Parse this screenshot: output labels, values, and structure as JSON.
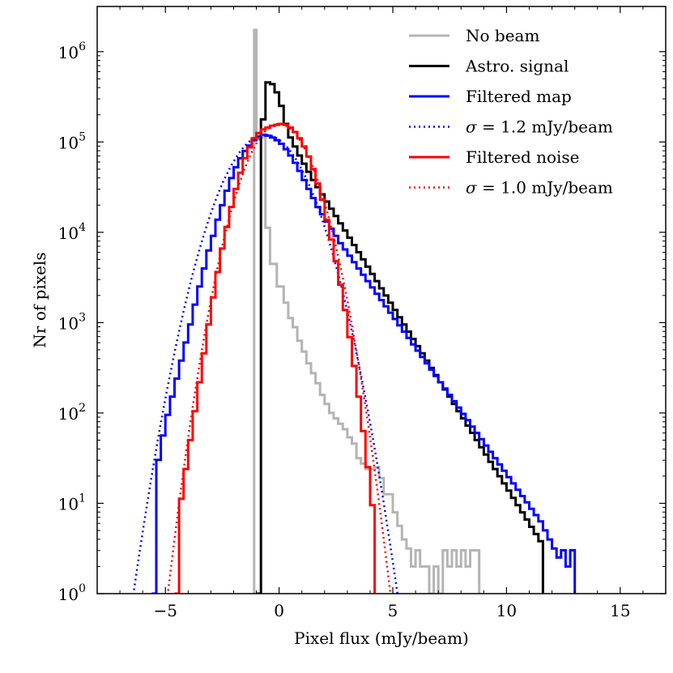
{
  "chart_data": {
    "type": "line",
    "title": "",
    "xlabel": "Pixel flux (mJy/beam)",
    "ylabel": "Nr of pixels",
    "xlim": [
      -8,
      17
    ],
    "ylim_log10": [
      0,
      6.5
    ],
    "yscale": "log",
    "xticks": [
      -5,
      0,
      5,
      10,
      15
    ],
    "xtick_labels": [
      "−5",
      "0",
      "5",
      "10",
      "15"
    ],
    "yticks_log10": [
      0,
      1,
      2,
      3,
      4,
      5,
      6
    ],
    "ytick_labels": [
      {
        "base": "10",
        "exp": "0"
      },
      {
        "base": "10",
        "exp": "1"
      },
      {
        "base": "10",
        "exp": "2"
      },
      {
        "base": "10",
        "exp": "3"
      },
      {
        "base": "10",
        "exp": "4"
      },
      {
        "base": "10",
        "exp": "5"
      },
      {
        "base": "10",
        "exp": "6"
      }
    ],
    "legend_position": "top-right",
    "series": [
      {
        "name": "No beam",
        "color": "#b4b4b4",
        "style": "step",
        "dashed": false,
        "points": [
          [
            -1.1,
            6.24
          ],
          [
            -1.0,
            5.05
          ],
          [
            -0.6,
            4.05
          ],
          [
            -0.4,
            3.65
          ],
          [
            -0.1,
            3.4
          ],
          [
            0.2,
            3.22
          ],
          [
            0.4,
            3.05
          ],
          [
            0.6,
            2.95
          ],
          [
            0.8,
            2.8
          ],
          [
            1.0,
            2.68
          ],
          [
            1.2,
            2.55
          ],
          [
            1.4,
            2.44
          ],
          [
            1.6,
            2.33
          ],
          [
            1.8,
            2.2
          ],
          [
            2.0,
            2.1
          ],
          [
            2.2,
            2.0
          ],
          [
            2.4,
            1.94
          ],
          [
            2.6,
            1.88
          ],
          [
            2.8,
            1.82
          ],
          [
            3.0,
            1.73
          ],
          [
            3.2,
            1.66
          ],
          [
            3.4,
            1.5
          ],
          [
            3.6,
            1.44
          ],
          [
            3.8,
            1.38
          ],
          [
            4.0,
            1.38
          ],
          [
            4.2,
            1.4
          ],
          [
            4.4,
            1.28
          ],
          [
            4.6,
            1.1
          ],
          [
            4.8,
            1.1
          ],
          [
            5.0,
            0.9
          ],
          [
            5.2,
            0.75
          ],
          [
            5.4,
            0.6
          ],
          [
            5.6,
            0.5
          ],
          [
            5.8,
            0.3
          ],
          [
            6.0,
            0.48
          ],
          [
            6.2,
            0.3
          ],
          [
            6.4,
            0.3
          ],
          [
            6.6,
            0.0
          ],
          [
            6.8,
            0.3
          ],
          [
            7.0,
            0.0
          ],
          [
            7.2,
            0.48
          ],
          [
            7.4,
            0.3
          ],
          [
            7.6,
            0.48
          ],
          [
            7.8,
            0.3
          ],
          [
            8.0,
            0.48
          ],
          [
            8.2,
            0.3
          ],
          [
            8.4,
            0.48
          ],
          [
            8.6,
            0.48
          ],
          [
            8.8,
            0.0
          ]
        ]
      },
      {
        "name": "Astro. signal",
        "color": "#000000",
        "style": "step",
        "dashed": false,
        "points": [
          [
            -1.0,
            0.0
          ],
          [
            -0.8,
            5.25
          ],
          [
            -0.6,
            5.66
          ],
          [
            -0.4,
            5.64
          ],
          [
            -0.2,
            5.55
          ],
          [
            0.0,
            5.4
          ],
          [
            0.2,
            5.2
          ],
          [
            0.4,
            5.05
          ],
          [
            0.6,
            4.95
          ],
          [
            0.8,
            4.85
          ],
          [
            1.0,
            4.76
          ],
          [
            1.2,
            4.67
          ],
          [
            1.4,
            4.58
          ],
          [
            1.6,
            4.5
          ],
          [
            1.8,
            4.42
          ],
          [
            2.0,
            4.34
          ],
          [
            2.2,
            4.26
          ],
          [
            2.4,
            4.18
          ],
          [
            2.6,
            4.1
          ],
          [
            2.8,
            4.02
          ],
          [
            3.0,
            3.94
          ],
          [
            3.2,
            3.86
          ],
          [
            3.4,
            3.78
          ],
          [
            3.6,
            3.7
          ],
          [
            3.8,
            3.62
          ],
          [
            4.0,
            3.54
          ],
          [
            4.2,
            3.46
          ],
          [
            4.4,
            3.38
          ],
          [
            4.6,
            3.3
          ],
          [
            4.8,
            3.22
          ],
          [
            5.0,
            3.14
          ],
          [
            5.2,
            3.06
          ],
          [
            5.4,
            2.98
          ],
          [
            5.6,
            2.9
          ],
          [
            5.8,
            2.82
          ],
          [
            6.0,
            2.74
          ],
          [
            6.2,
            2.66
          ],
          [
            6.4,
            2.58
          ],
          [
            6.6,
            2.5
          ],
          [
            6.8,
            2.42
          ],
          [
            7.0,
            2.34
          ],
          [
            7.2,
            2.26
          ],
          [
            7.4,
            2.18
          ],
          [
            7.6,
            2.1
          ],
          [
            7.8,
            2.02
          ],
          [
            8.0,
            1.94
          ],
          [
            8.2,
            1.86
          ],
          [
            8.4,
            1.78
          ],
          [
            8.6,
            1.7
          ],
          [
            8.8,
            1.62
          ],
          [
            9.0,
            1.54
          ],
          [
            9.2,
            1.46
          ],
          [
            9.4,
            1.38
          ],
          [
            9.6,
            1.3
          ],
          [
            9.8,
            1.22
          ],
          [
            10.0,
            1.14
          ],
          [
            10.2,
            1.06
          ],
          [
            10.4,
            0.98
          ],
          [
            10.6,
            0.9
          ],
          [
            10.8,
            0.82
          ],
          [
            11.0,
            0.74
          ],
          [
            11.2,
            0.66
          ],
          [
            11.4,
            0.58
          ],
          [
            11.6,
            0.0
          ]
        ]
      },
      {
        "name": "Filtered map",
        "color": "#0000ff",
        "style": "step",
        "dashed": false,
        "points": [
          [
            -5.6,
            0.0
          ],
          [
            -5.4,
            1.48
          ],
          [
            -5.2,
            1.75
          ],
          [
            -5.0,
            1.98
          ],
          [
            -4.8,
            2.18
          ],
          [
            -4.6,
            2.38
          ],
          [
            -4.4,
            2.58
          ],
          [
            -4.2,
            2.78
          ],
          [
            -4.0,
            2.98
          ],
          [
            -3.8,
            3.2
          ],
          [
            -3.6,
            3.4
          ],
          [
            -3.4,
            3.6
          ],
          [
            -3.2,
            3.8
          ],
          [
            -3.0,
            3.96
          ],
          [
            -2.8,
            4.14
          ],
          [
            -2.6,
            4.3
          ],
          [
            -2.4,
            4.46
          ],
          [
            -2.2,
            4.6
          ],
          [
            -2.0,
            4.72
          ],
          [
            -1.8,
            4.82
          ],
          [
            -1.6,
            4.9
          ],
          [
            -1.4,
            4.96
          ],
          [
            -1.2,
            5.02
          ],
          [
            -1.0,
            5.06
          ],
          [
            -0.8,
            5.08
          ],
          [
            -0.6,
            5.07
          ],
          [
            -0.4,
            5.05
          ],
          [
            -0.2,
            5.02
          ],
          [
            0.0,
            4.98
          ],
          [
            0.2,
            4.92
          ],
          [
            0.4,
            4.85
          ],
          [
            0.6,
            4.77
          ],
          [
            0.8,
            4.68
          ],
          [
            1.0,
            4.58
          ],
          [
            1.2,
            4.48
          ],
          [
            1.4,
            4.38
          ],
          [
            1.6,
            4.28
          ],
          [
            1.8,
            4.2
          ],
          [
            2.0,
            4.12
          ],
          [
            2.2,
            4.04
          ],
          [
            2.4,
            3.96
          ],
          [
            2.6,
            3.88
          ],
          [
            2.8,
            3.81
          ],
          [
            3.0,
            3.74
          ],
          [
            3.2,
            3.67
          ],
          [
            3.4,
            3.6
          ],
          [
            3.6,
            3.53
          ],
          [
            3.8,
            3.46
          ],
          [
            4.0,
            3.39
          ],
          [
            4.2,
            3.32
          ],
          [
            4.4,
            3.25
          ],
          [
            4.6,
            3.18
          ],
          [
            4.8,
            3.11
          ],
          [
            5.0,
            3.04
          ],
          [
            5.2,
            2.97
          ],
          [
            5.4,
            2.9
          ],
          [
            5.6,
            2.83
          ],
          [
            5.8,
            2.76
          ],
          [
            6.0,
            2.69
          ],
          [
            6.2,
            2.62
          ],
          [
            6.4,
            2.55
          ],
          [
            6.6,
            2.48
          ],
          [
            6.8,
            2.41
          ],
          [
            7.0,
            2.34
          ],
          [
            7.2,
            2.27
          ],
          [
            7.4,
            2.2
          ],
          [
            7.6,
            2.13
          ],
          [
            7.8,
            2.06
          ],
          [
            8.0,
            1.99
          ],
          [
            8.2,
            1.92
          ],
          [
            8.4,
            1.85
          ],
          [
            8.6,
            1.78
          ],
          [
            8.8,
            1.71
          ],
          [
            9.0,
            1.64
          ],
          [
            9.2,
            1.57
          ],
          [
            9.4,
            1.5
          ],
          [
            9.6,
            1.43
          ],
          [
            9.8,
            1.36
          ],
          [
            10.0,
            1.29
          ],
          [
            10.2,
            1.22
          ],
          [
            10.4,
            1.15
          ],
          [
            10.6,
            1.08
          ],
          [
            10.8,
            1.01
          ],
          [
            11.0,
            0.94
          ],
          [
            11.2,
            0.87
          ],
          [
            11.4,
            0.8
          ],
          [
            11.6,
            0.7
          ],
          [
            11.8,
            0.6
          ],
          [
            12.0,
            0.5
          ],
          [
            12.2,
            0.4
          ],
          [
            12.4,
            0.48
          ],
          [
            12.6,
            0.3
          ],
          [
            12.8,
            0.48
          ],
          [
            13.0,
            0.0
          ]
        ]
      },
      {
        "name": "σ = 1.2 mJy/beam",
        "label_sigma": "σ",
        "label_rest": " = 1.2 mJy/beam",
        "color": "#0000ff",
        "style": "gaussian",
        "dashed": true,
        "sigma": 1.2,
        "peak_x": -0.6,
        "peak_log10": 5.08
      },
      {
        "name": "Filtered noise",
        "color": "#ff0000",
        "style": "step",
        "dashed": false,
        "points": [
          [
            -4.6,
            0.0
          ],
          [
            -4.4,
            1.05
          ],
          [
            -4.2,
            1.38
          ],
          [
            -4.0,
            1.7
          ],
          [
            -3.8,
            2.02
          ],
          [
            -3.6,
            2.34
          ],
          [
            -3.4,
            2.66
          ],
          [
            -3.2,
            2.98
          ],
          [
            -3.0,
            3.28
          ],
          [
            -2.8,
            3.56
          ],
          [
            -2.6,
            3.82
          ],
          [
            -2.4,
            4.06
          ],
          [
            -2.2,
            4.28
          ],
          [
            -2.0,
            4.48
          ],
          [
            -1.8,
            4.66
          ],
          [
            -1.6,
            4.82
          ],
          [
            -1.4,
            4.94
          ],
          [
            -1.2,
            5.04
          ],
          [
            -1.0,
            5.1
          ],
          [
            -0.8,
            5.14
          ],
          [
            -0.6,
            5.16
          ],
          [
            -0.4,
            5.18
          ],
          [
            -0.2,
            5.19
          ],
          [
            0.0,
            5.2
          ],
          [
            0.2,
            5.19
          ],
          [
            0.4,
            5.16
          ],
          [
            0.6,
            5.11
          ],
          [
            0.8,
            5.04
          ],
          [
            1.0,
            4.95
          ],
          [
            1.2,
            4.84
          ],
          [
            1.4,
            4.7
          ],
          [
            1.6,
            4.54
          ],
          [
            1.8,
            4.36
          ],
          [
            2.0,
            4.14
          ],
          [
            2.2,
            3.92
          ],
          [
            2.4,
            3.68
          ],
          [
            2.6,
            3.42
          ],
          [
            2.8,
            3.14
          ],
          [
            3.0,
            2.84
          ],
          [
            3.2,
            2.52
          ],
          [
            3.4,
            2.18
          ],
          [
            3.6,
            1.8
          ],
          [
            3.8,
            1.4
          ],
          [
            4.0,
            0.98
          ],
          [
            4.2,
            0.0
          ]
        ]
      },
      {
        "name": "σ = 1.0 mJy/beam",
        "label_sigma": "σ",
        "label_rest": " = 1.0 mJy/beam",
        "color": "#ff0000",
        "style": "gaussian",
        "dashed": true,
        "sigma": 1.0,
        "peak_x": 0.0,
        "peak_log10": 5.2
      }
    ]
  }
}
